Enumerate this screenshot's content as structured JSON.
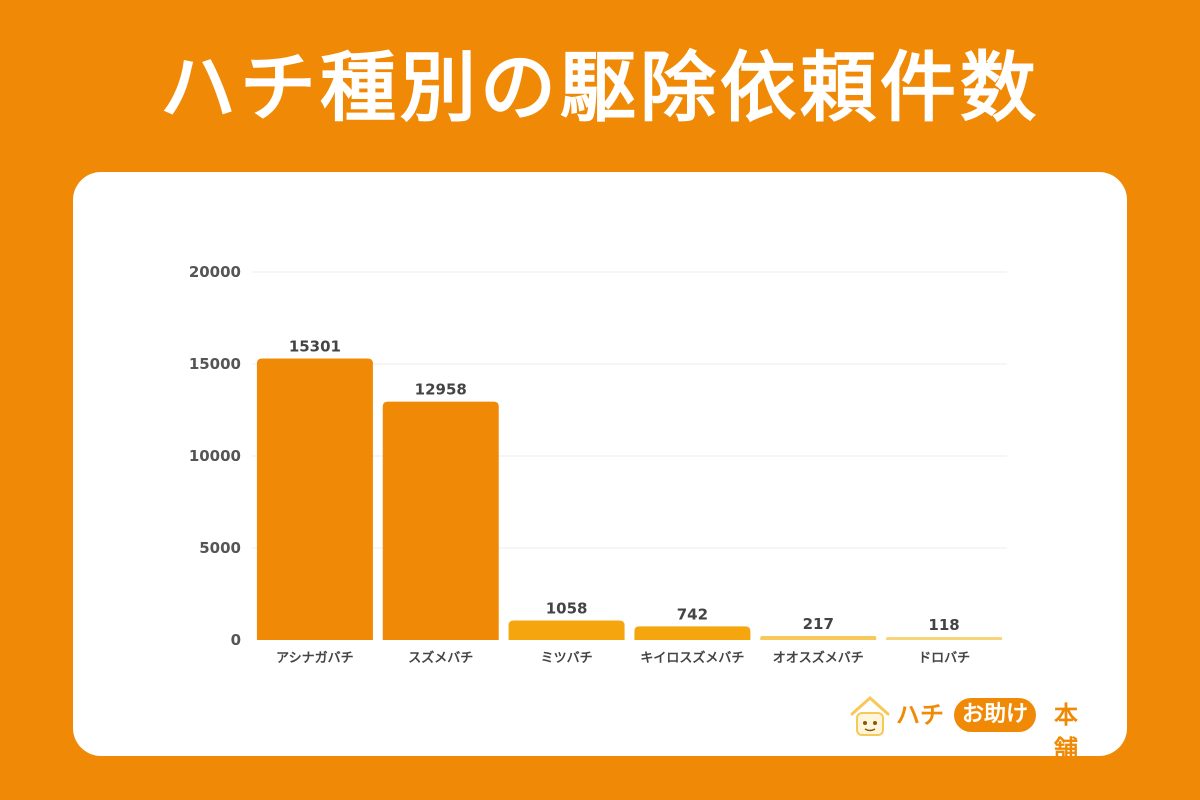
{
  "header": {
    "title": "ハチ種別の駆除依頼件数"
  },
  "chart_data": {
    "type": "bar",
    "categories": [
      "アシナガバチ",
      "スズメバチ",
      "ミツバチ",
      "キイロスズメバチ",
      "オオスズメバチ",
      "ドロバチ"
    ],
    "values": [
      15301,
      12958,
      1058,
      742,
      217,
      118
    ],
    "colors": [
      "#F08A06",
      "#F08A06",
      "#F5A60F",
      "#F5A60F",
      "#F7C85A",
      "#F7D37A"
    ],
    "ylim": [
      0,
      20000
    ],
    "yticks": [
      0,
      5000,
      10000,
      15000,
      20000
    ],
    "grid": true
  },
  "logo": {
    "part1": "ハチ",
    "part2": "お助け",
    "part3": "本舗"
  }
}
